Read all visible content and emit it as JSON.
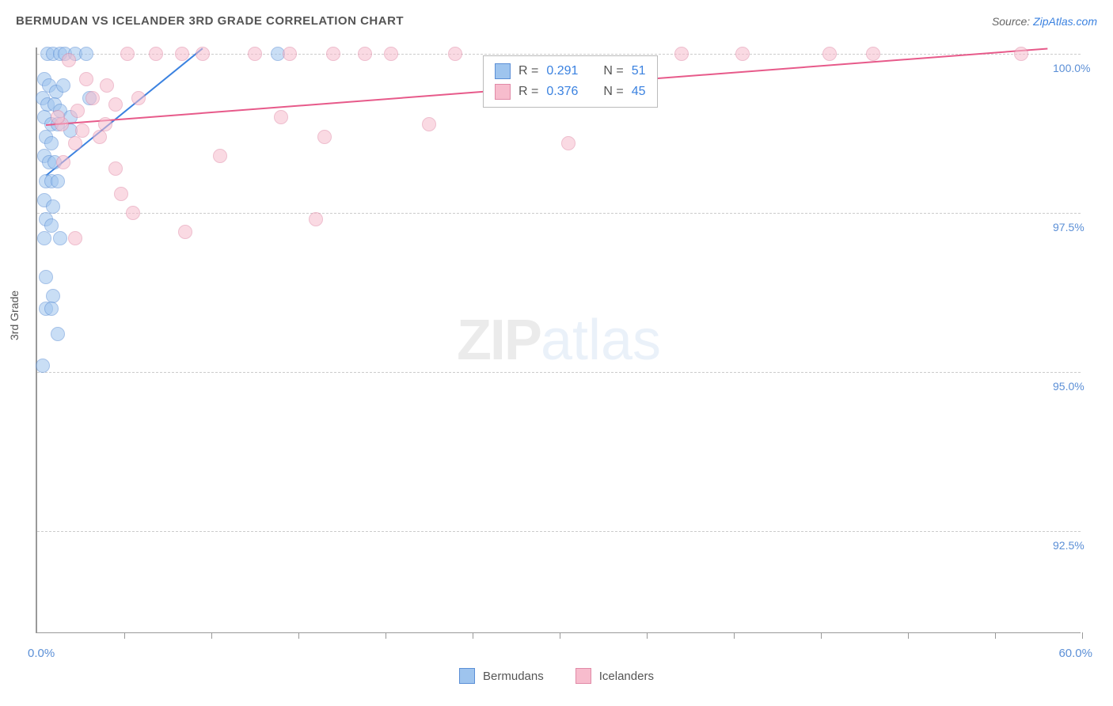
{
  "title": "BERMUDAN VS ICELANDER 3RD GRADE CORRELATION CHART",
  "source_label": "Source: ",
  "source_link": "ZipAtlas.com",
  "ylabel": "3rd Grade",
  "chart": {
    "type": "scatter",
    "xlim": [
      0,
      60
    ],
    "ylim": [
      90.9,
      100.1
    ],
    "xtick_positions": [
      5,
      10,
      15,
      20,
      25,
      30,
      35,
      40,
      45,
      50,
      55,
      60
    ],
    "ytick_positions": [
      92.5,
      95.0,
      97.5,
      100.0
    ],
    "ytick_labels": [
      "92.5%",
      "95.0%",
      "97.5%",
      "100.0%"
    ],
    "xaxis_min_label": "0.0%",
    "xaxis_max_label": "60.0%",
    "grid_color": "#cccccc",
    "background_color": "#ffffff",
    "axis_color": "#999999",
    "label_color": "#5b8fd6",
    "marker_radius": 9,
    "marker_opacity": 0.55,
    "series": [
      {
        "name": "Bermudans",
        "color_fill": "#9ec4ee",
        "color_stroke": "#5b8fd6",
        "R": "0.291",
        "N": "51",
        "trendline": {
          "x1": 0.5,
          "y1": 98.1,
          "x2": 9.5,
          "y2": 100.1,
          "color": "#3b82e0"
        },
        "points": [
          [
            0.6,
            100.0
          ],
          [
            0.9,
            100.0
          ],
          [
            1.3,
            100.0
          ],
          [
            1.6,
            100.0
          ],
          [
            2.2,
            100.0
          ],
          [
            2.8,
            100.0
          ],
          [
            13.8,
            100.0
          ],
          [
            0.4,
            99.6
          ],
          [
            0.7,
            99.5
          ],
          [
            1.1,
            99.4
          ],
          [
            1.5,
            99.5
          ],
          [
            0.3,
            99.3
          ],
          [
            0.6,
            99.2
          ],
          [
            1.0,
            99.2
          ],
          [
            1.3,
            99.1
          ],
          [
            1.9,
            99.0
          ],
          [
            3.0,
            99.3
          ],
          [
            0.4,
            99.0
          ],
          [
            0.8,
            98.9
          ],
          [
            1.2,
            98.9
          ],
          [
            1.9,
            98.8
          ],
          [
            0.5,
            98.7
          ],
          [
            0.8,
            98.6
          ],
          [
            0.4,
            98.4
          ],
          [
            0.7,
            98.3
          ],
          [
            1.0,
            98.3
          ],
          [
            0.5,
            98.0
          ],
          [
            0.8,
            98.0
          ],
          [
            1.2,
            98.0
          ],
          [
            0.4,
            97.7
          ],
          [
            0.9,
            97.6
          ],
          [
            0.5,
            97.4
          ],
          [
            0.8,
            97.3
          ],
          [
            0.4,
            97.1
          ],
          [
            1.3,
            97.1
          ],
          [
            0.5,
            96.5
          ],
          [
            0.9,
            96.2
          ],
          [
            0.5,
            96.0
          ],
          [
            0.8,
            96.0
          ],
          [
            1.2,
            95.6
          ],
          [
            0.3,
            95.1
          ]
        ]
      },
      {
        "name": "Icelanders",
        "color_fill": "#f7bccd",
        "color_stroke": "#e18aa7",
        "R": "0.376",
        "N": "45",
        "trendline": {
          "x1": 0.5,
          "y1": 98.9,
          "x2": 58,
          "y2": 100.1,
          "color": "#e75a8a"
        },
        "points": [
          [
            5.2,
            100.0
          ],
          [
            6.8,
            100.0
          ],
          [
            8.3,
            100.0
          ],
          [
            9.5,
            100.0
          ],
          [
            12.5,
            100.0
          ],
          [
            14.5,
            100.0
          ],
          [
            17.0,
            100.0
          ],
          [
            18.8,
            100.0
          ],
          [
            20.3,
            100.0
          ],
          [
            24.0,
            100.0
          ],
          [
            37.0,
            100.0
          ],
          [
            40.5,
            100.0
          ],
          [
            45.5,
            100.0
          ],
          [
            48.0,
            100.0
          ],
          [
            56.5,
            100.0
          ],
          [
            2.8,
            99.6
          ],
          [
            4.0,
            99.5
          ],
          [
            3.2,
            99.3
          ],
          [
            4.5,
            99.2
          ],
          [
            5.8,
            99.3
          ],
          [
            2.3,
            99.1
          ],
          [
            14.0,
            99.0
          ],
          [
            1.4,
            98.9
          ],
          [
            2.6,
            98.8
          ],
          [
            3.9,
            98.9
          ],
          [
            22.5,
            98.9
          ],
          [
            2.2,
            98.6
          ],
          [
            3.6,
            98.7
          ],
          [
            16.5,
            98.7
          ],
          [
            30.5,
            98.6
          ],
          [
            1.5,
            98.3
          ],
          [
            4.5,
            98.2
          ],
          [
            10.5,
            98.4
          ],
          [
            4.8,
            97.8
          ],
          [
            5.5,
            97.5
          ],
          [
            2.2,
            97.1
          ],
          [
            8.5,
            97.2
          ],
          [
            16.0,
            97.4
          ],
          [
            1.2,
            99.0
          ],
          [
            1.8,
            99.9
          ]
        ]
      }
    ]
  },
  "stats_legend": {
    "R_label": "R = ",
    "N_label": "N = "
  },
  "watermark": {
    "zip": "ZIP",
    "atlas": "atlas"
  }
}
